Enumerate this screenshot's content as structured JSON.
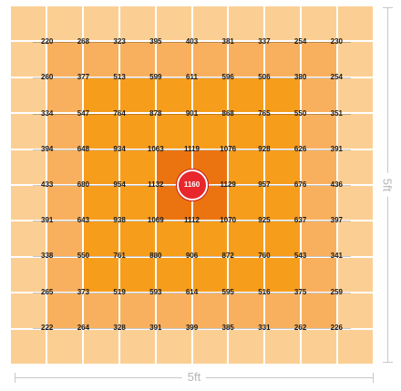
{
  "chart_data": {
    "type": "heatmap",
    "rows": [
      [
        220,
        268,
        323,
        395,
        403,
        381,
        337,
        254,
        230
      ],
      [
        260,
        377,
        513,
        599,
        611,
        596,
        506,
        380,
        254
      ],
      [
        334,
        547,
        764,
        878,
        901,
        868,
        765,
        550,
        351
      ],
      [
        394,
        648,
        934,
        1063,
        1119,
        1076,
        928,
        626,
        391
      ],
      [
        433,
        680,
        954,
        1132,
        1160,
        1129,
        957,
        676,
        436
      ],
      [
        391,
        643,
        938,
        1069,
        1112,
        1070,
        925,
        637,
        397
      ],
      [
        338,
        550,
        761,
        880,
        906,
        872,
        760,
        543,
        341
      ],
      [
        265,
        373,
        519,
        593,
        614,
        595,
        516,
        375,
        259
      ],
      [
        222,
        264,
        328,
        391,
        399,
        385,
        331,
        262,
        226
      ]
    ],
    "center_value": 1160,
    "grid_cells": 10,
    "tile_band_colors": [
      "#fbcf94",
      "#f8b05e",
      "#f79d1c",
      "#ec7410"
    ],
    "center_marker_color": "#e8262b"
  },
  "dimensions": {
    "width_label": "5ft",
    "height_label": "5ft"
  }
}
